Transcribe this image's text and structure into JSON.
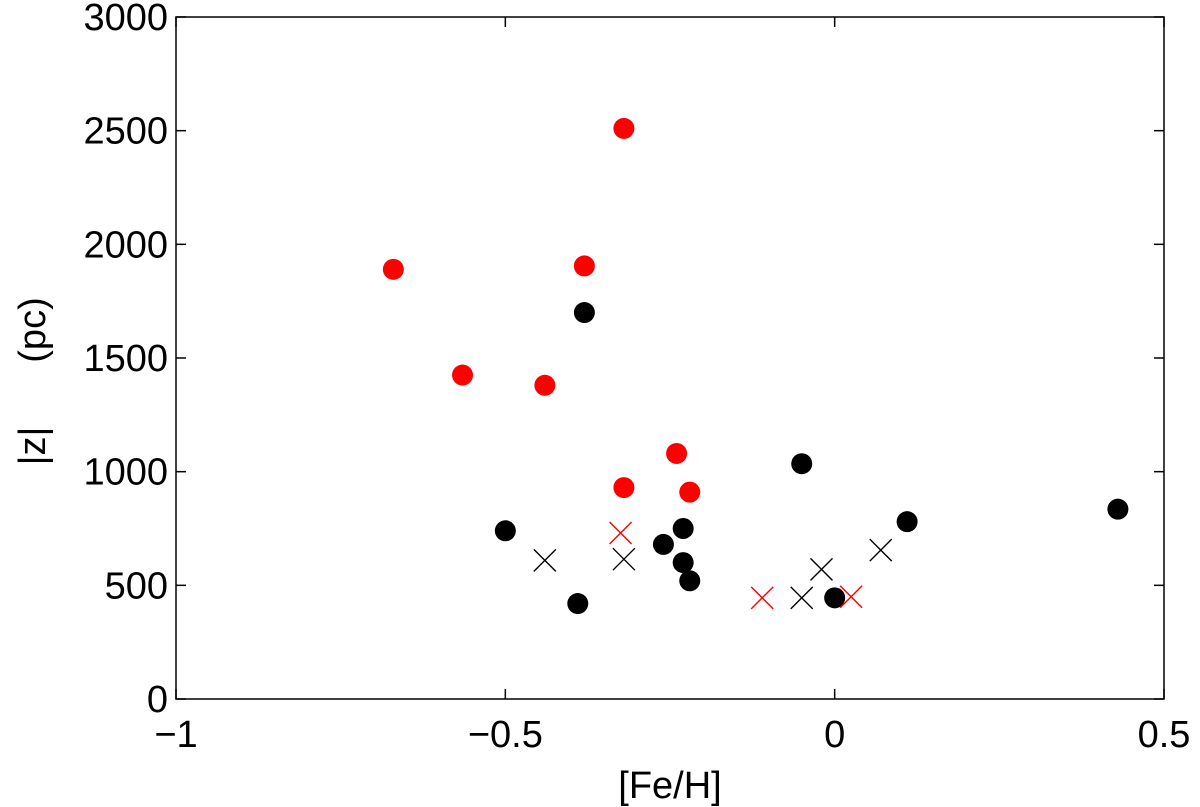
{
  "chart_data": {
    "type": "scatter",
    "title": "",
    "xlabel": "[Fe/H]",
    "ylabel_parts": [
      "|z|",
      "(pc)"
    ],
    "xlim": [
      -1,
      0.5
    ],
    "ylim": [
      0,
      3000
    ],
    "xticks": [
      -1,
      -0.5,
      0,
      0.5
    ],
    "xtick_labels": [
      "−1",
      "−0.5",
      "0",
      "0.5"
    ],
    "yticks": [
      0,
      500,
      1000,
      1500,
      2000,
      2500,
      3000
    ],
    "ytick_labels": [
      "0",
      "500",
      "1000",
      "1500",
      "2000",
      "2500",
      "3000"
    ],
    "grid": false,
    "legend": "none",
    "series": [
      {
        "marker": "filled-circle",
        "color": "#ff0000",
        "points": [
          [
            -0.67,
            1890
          ],
          [
            -0.565,
            1425
          ],
          [
            -0.44,
            1380
          ],
          [
            -0.38,
            1905
          ],
          [
            -0.32,
            2510
          ],
          [
            -0.32,
            930
          ],
          [
            -0.24,
            1080
          ],
          [
            -0.22,
            910
          ]
        ]
      },
      {
        "marker": "filled-circle",
        "color": "#000000",
        "points": [
          [
            -0.5,
            740
          ],
          [
            -0.39,
            420
          ],
          [
            -0.38,
            1700
          ],
          [
            -0.26,
            680
          ],
          [
            -0.23,
            750
          ],
          [
            -0.23,
            600
          ],
          [
            -0.22,
            520
          ],
          [
            -0.05,
            1035
          ],
          [
            0.0,
            445
          ],
          [
            0.11,
            780
          ],
          [
            0.43,
            835
          ]
        ]
      },
      {
        "marker": "x",
        "color": "#ff0000",
        "points": [
          [
            -0.325,
            730
          ],
          [
            -0.11,
            445
          ],
          [
            0.025,
            450
          ]
        ]
      },
      {
        "marker": "x",
        "color": "#000000",
        "points": [
          [
            -0.44,
            610
          ],
          [
            -0.32,
            615
          ],
          [
            -0.05,
            445
          ],
          [
            -0.02,
            570
          ],
          [
            0.07,
            655
          ]
        ]
      }
    ]
  }
}
